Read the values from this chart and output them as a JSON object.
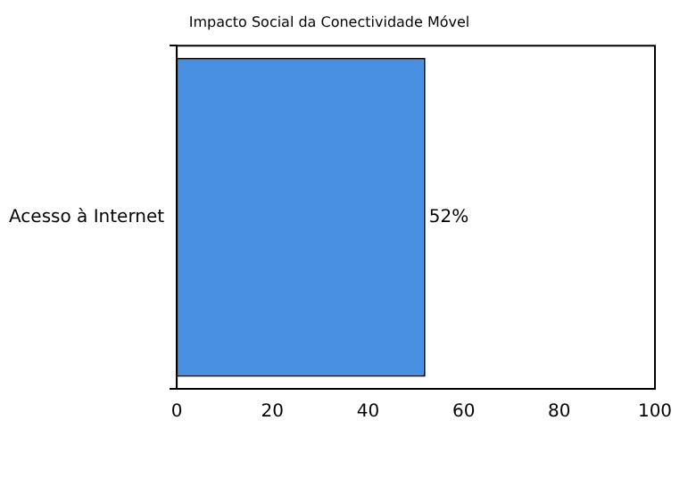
{
  "chart_data": {
    "type": "bar",
    "orientation": "horizontal",
    "title": "Impacto Social da Conectividade Móvel",
    "categories": [
      "Acesso à Internet"
    ],
    "values": [
      52
    ],
    "color": "#4a90e2",
    "value_labels": [
      "52%"
    ],
    "xlim": [
      0,
      100
    ],
    "xticks": [
      0,
      20,
      40,
      60,
      80,
      100
    ],
    "grid": false,
    "legend": false
  }
}
